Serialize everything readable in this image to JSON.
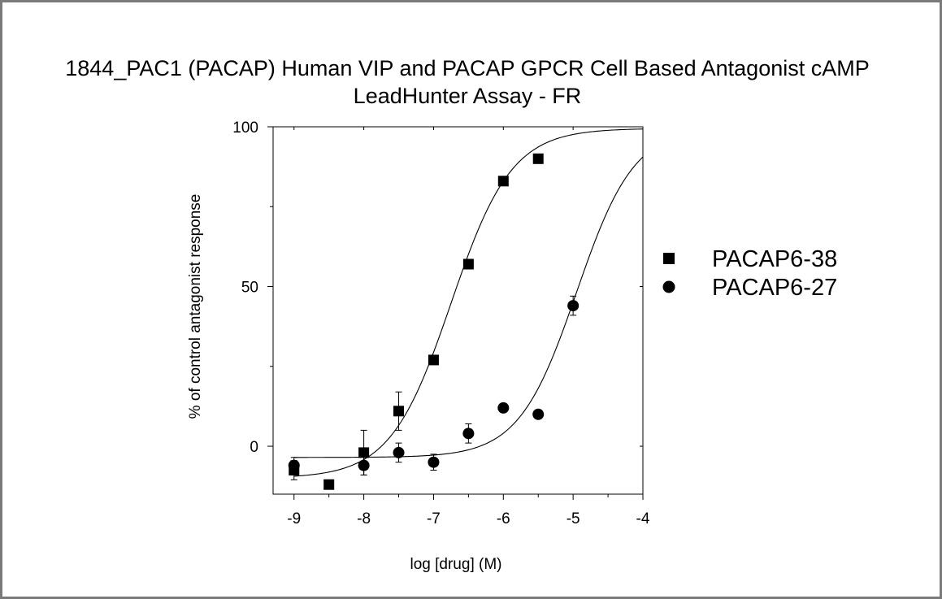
{
  "chart_data": {
    "type": "scatter",
    "title": "1844_PAC1 (PACAP) Human VIP and PACAP GPCR Cell Based Antagonist cAMP",
    "subtitle": "LeadHunter Assay - FR",
    "xlabel": "log [drug] (M)",
    "ylabel": "% of control antagonist response",
    "xlim": [
      -9.3,
      -4
    ],
    "ylim": [
      -15,
      100
    ],
    "x_ticks": [
      -9,
      -8,
      -7,
      -6,
      -5,
      -4
    ],
    "x_tick_labels": [
      "-9",
      "-8",
      "-7",
      "-6",
      "-5",
      "-4"
    ],
    "y_ticks": [
      0,
      50,
      100
    ],
    "y_tick_labels": [
      "0",
      "50",
      "100"
    ],
    "grid": false,
    "legend_position": "right",
    "series": [
      {
        "name": "PACAP6-38",
        "marker": "square",
        "color": "#000000",
        "points": [
          {
            "x": -9,
            "y": -7.5,
            "err": 3
          },
          {
            "x": -8.5,
            "y": -12,
            "err": 0
          },
          {
            "x": -8,
            "y": -2,
            "err": 7
          },
          {
            "x": -7.5,
            "y": 11,
            "err": 6
          },
          {
            "x": -7,
            "y": 27,
            "err": 0
          },
          {
            "x": -6.5,
            "y": 57,
            "err": 0
          },
          {
            "x": -6,
            "y": 83,
            "err": 0
          },
          {
            "x": -5.5,
            "y": 90,
            "err": 0
          }
        ],
        "fit": {
          "bottom": -10,
          "top": 99.5,
          "logIC50": -6.75,
          "hill": 1.0
        }
      },
      {
        "name": "PACAP6-27",
        "marker": "circle",
        "color": "#000000",
        "points": [
          {
            "x": -9,
            "y": -6,
            "err": 2.5
          },
          {
            "x": -8,
            "y": -6,
            "err": 3
          },
          {
            "x": -7.5,
            "y": -2,
            "err": 3
          },
          {
            "x": -7,
            "y": -5,
            "err": 2.5
          },
          {
            "x": -6.5,
            "y": 4,
            "err": 3
          },
          {
            "x": -6,
            "y": 12,
            "err": 0
          },
          {
            "x": -5.5,
            "y": 10,
            "err": 0
          },
          {
            "x": -5,
            "y": 44,
            "err": 3
          }
        ],
        "fit": {
          "bottom": -3.5,
          "top": 100,
          "logIC50": -4.95,
          "hill": 1.05
        }
      }
    ]
  }
}
